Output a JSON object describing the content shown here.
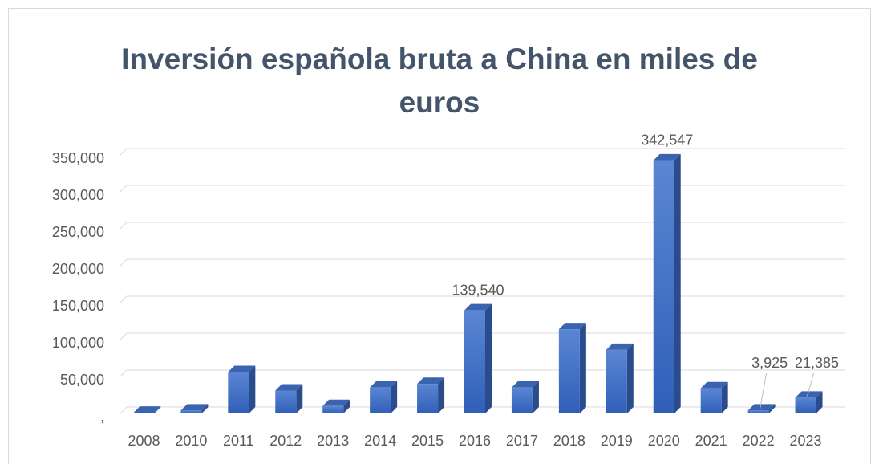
{
  "chart_data": {
    "type": "bar3d",
    "title": "Inversión española bruta a China en miles de euros",
    "categories": [
      "2008",
      "2010",
      "2011",
      "2012",
      "2013",
      "2014",
      "2015",
      "2016",
      "2017",
      "2018",
      "2019",
      "2020",
      "2021",
      "2022",
      "2023"
    ],
    "values": [
      1000,
      4000,
      56000,
      31000,
      10000,
      35000,
      40000,
      139540,
      35000,
      114000,
      86000,
      342547,
      34000,
      3925,
      21385
    ],
    "value_labels": [
      null,
      null,
      null,
      null,
      null,
      null,
      null,
      "139,540",
      null,
      null,
      null,
      "342,547",
      null,
      "3,925",
      "21,385"
    ],
    "color": "#4472c4",
    "ylim": [
      0,
      350000
    ],
    "yticks": [
      {
        "value": 0,
        "label": ","
      },
      {
        "value": 50000,
        "label": "50,000"
      },
      {
        "value": 100000,
        "label": "100,000"
      },
      {
        "value": 150000,
        "label": "150,000"
      },
      {
        "value": 200000,
        "label": "200,000"
      },
      {
        "value": 250000,
        "label": "250,000"
      },
      {
        "value": 300000,
        "label": "300,000"
      },
      {
        "value": 350000,
        "label": "350,000"
      }
    ],
    "grid": true
  }
}
